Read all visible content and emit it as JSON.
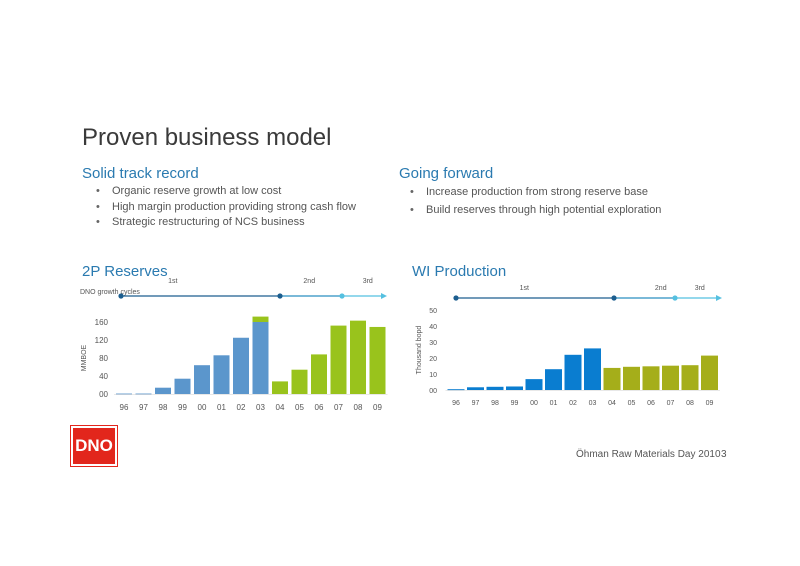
{
  "title": "Proven business model",
  "left": {
    "heading": "Solid track record",
    "bullets": [
      "Organic reserve growth at low cost",
      "High margin production providing strong cash flow",
      "Strategic restructuring of NCS business"
    ]
  },
  "right": {
    "heading": "Going forward",
    "bullets": [
      "Increase production from strong reserve base",
      "Build reserves through high potential exploration"
    ]
  },
  "cycles_label": "DNO growth cycles",
  "colors": {
    "blue_steel": "#5b96cc",
    "blue_bright": "#0a7dd0",
    "lime": "#99c31c",
    "olive": "#a5ae1a",
    "timeline_dark": "#1c5e8f",
    "timeline_light": "#55c0e0"
  },
  "logo": "DNO",
  "footer": {
    "text": "Öhman Raw Materials Day 2010",
    "page": "3"
  },
  "chart_data": [
    {
      "type": "bar",
      "title": "2P Reserves",
      "ylabel": "MMBOE",
      "ylim": [
        0,
        160
      ],
      "yticks": [
        "00",
        "40",
        "80",
        "120",
        "160"
      ],
      "categories": [
        "96",
        "97",
        "98",
        "99",
        "00",
        "01",
        "02",
        "03",
        "04",
        "05",
        "06",
        "07",
        "08",
        "09"
      ],
      "series": [
        {
          "values": [
            1,
            1,
            14,
            34,
            64,
            86,
            125,
            160,
            0,
            0,
            0,
            0,
            0,
            0
          ],
          "color": "#5b96cc"
        },
        {
          "values": [
            0,
            0,
            0,
            0,
            0,
            0,
            0,
            12,
            28,
            54,
            88,
            152,
            163,
            149
          ],
          "color": "#99c31c"
        }
      ],
      "cycles": [
        {
          "label": "1st",
          "x": "98.5"
        },
        {
          "label": "2nd",
          "x": "05.5"
        },
        {
          "label": "3rd",
          "x": "08.5"
        }
      ]
    },
    {
      "type": "bar",
      "title": "WI Production",
      "ylabel": "Thousand bopd",
      "ylim": [
        0,
        50
      ],
      "yticks": [
        "00",
        "10",
        "20",
        "30",
        "40",
        "50"
      ],
      "categories": [
        "96",
        "97",
        "98",
        "99",
        "00",
        "01",
        "02",
        "03",
        "04",
        "05",
        "06",
        "07",
        "08",
        "09"
      ],
      "series": [
        {
          "values": [
            0.5,
            1.7,
            2,
            2.2,
            6.8,
            13,
            22,
            26,
            0,
            0,
            0,
            0,
            0,
            0
          ],
          "color": "#0a7dd0"
        },
        {
          "values": [
            0,
            0,
            0,
            0,
            0,
            0,
            0,
            0,
            13.8,
            14.5,
            14.8,
            15.2,
            15.5,
            21.5
          ],
          "color": "#a5ae1a"
        }
      ],
      "cycles": [
        {
          "label": "1st",
          "x": "99.5"
        },
        {
          "label": "2nd",
          "x": "06.5"
        },
        {
          "label": "3rd",
          "x": "08.5"
        }
      ]
    }
  ]
}
